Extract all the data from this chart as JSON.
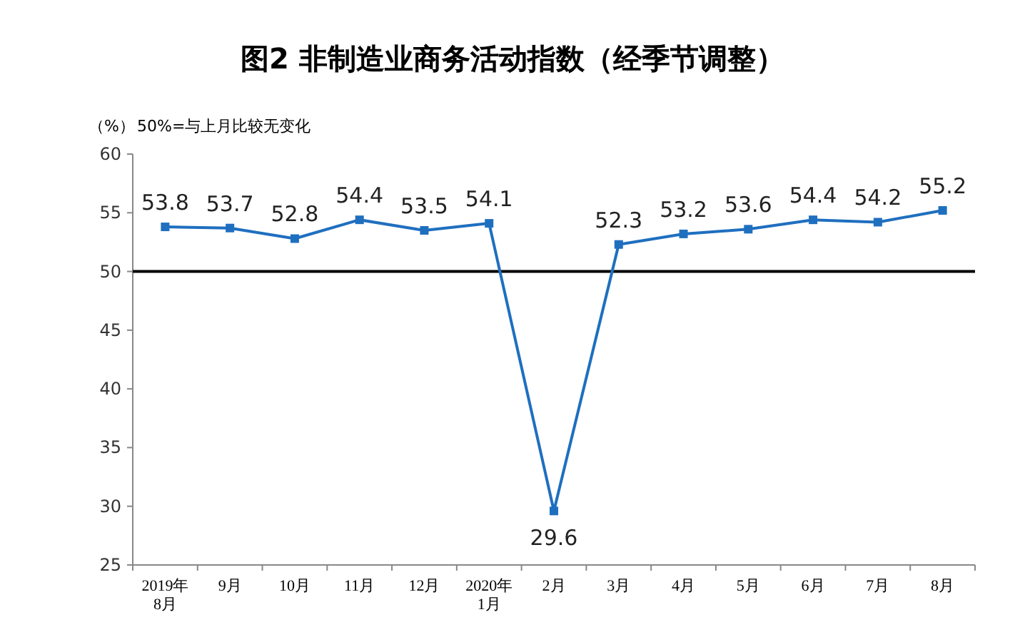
{
  "chart_data": {
    "type": "line",
    "title": "图2 非制造业商务活动指数（经季节调整）",
    "ylabel": "（%）",
    "annotations": [
      "50%=与上月比较无变化"
    ],
    "categories": [
      "2019年\n8月",
      "9月",
      "10月",
      "11月",
      "12月",
      "2020年\n1月",
      "2月",
      "3月",
      "4月",
      "5月",
      "6月",
      "7月",
      "8月"
    ],
    "series": [
      {
        "color": "#1f6fbf",
        "values": [
          53.8,
          53.7,
          52.8,
          54.4,
          53.5,
          54.1,
          29.6,
          52.3,
          53.2,
          53.6,
          54.4,
          54.2,
          55.2
        ]
      }
    ],
    "ylim": [
      25,
      60
    ],
    "yticks": [
      25,
      30,
      35,
      40,
      45,
      50,
      55,
      60
    ],
    "ref_lines": [
      {
        "axis": "y",
        "value": 50,
        "color": "#000000"
      }
    ],
    "data_labels": true,
    "marker": "square",
    "line_style": "solid",
    "grid": false
  }
}
